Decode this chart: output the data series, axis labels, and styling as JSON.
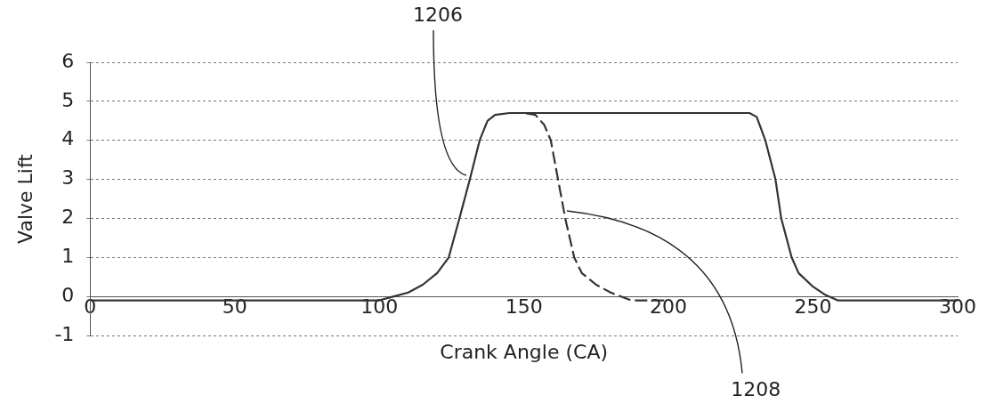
{
  "chart_data": {
    "type": "line",
    "xlabel": "Crank Angle (CA)",
    "ylabel": "Valve Lift",
    "xlim": [
      0,
      300
    ],
    "ylim": [
      -1,
      6
    ],
    "xticks": [
      0,
      50,
      100,
      150,
      200,
      250,
      300
    ],
    "yticks": [
      -1,
      0,
      1,
      2,
      3,
      4,
      5,
      6
    ],
    "grid": "y",
    "legend": false,
    "marker": "none",
    "series": [
      {
        "color": "#333333",
        "line_style": "solid",
        "x": [
          0,
          50,
          100,
          105,
          110,
          115,
          120,
          124,
          127.7,
          131.3,
          134.7,
          137.4,
          140,
          145,
          150,
          200,
          228,
          230.5,
          233.5,
          237,
          239,
          242.6,
          245,
          250,
          254,
          258.5,
          300
        ],
        "values": [
          -0.1,
          -0.1,
          -0.1,
          0,
          0.1,
          0.3,
          0.6,
          1,
          2,
          3,
          4,
          4.5,
          4.65,
          4.7,
          4.7,
          4.7,
          4.7,
          4.6,
          4,
          3,
          2,
          1,
          0.6,
          0.25,
          0.05,
          -0.1,
          -0.1
        ]
      },
      {
        "color": "#333333",
        "line_style": "dashed",
        "x": [
          145,
          150,
          154,
          157,
          159.3,
          161.8,
          164.3,
          167.4,
          170,
          175,
          180,
          187,
          200
        ],
        "values": [
          4.7,
          4.7,
          4.65,
          4.4,
          4,
          3,
          2,
          1,
          0.6,
          0.3,
          0.1,
          -0.1,
          -0.1
        ]
      }
    ],
    "annotations": [
      {
        "text": "1206",
        "x": 131,
        "y": 3.1
      },
      {
        "text": "1208",
        "x": 164,
        "y": 2.2
      }
    ]
  }
}
